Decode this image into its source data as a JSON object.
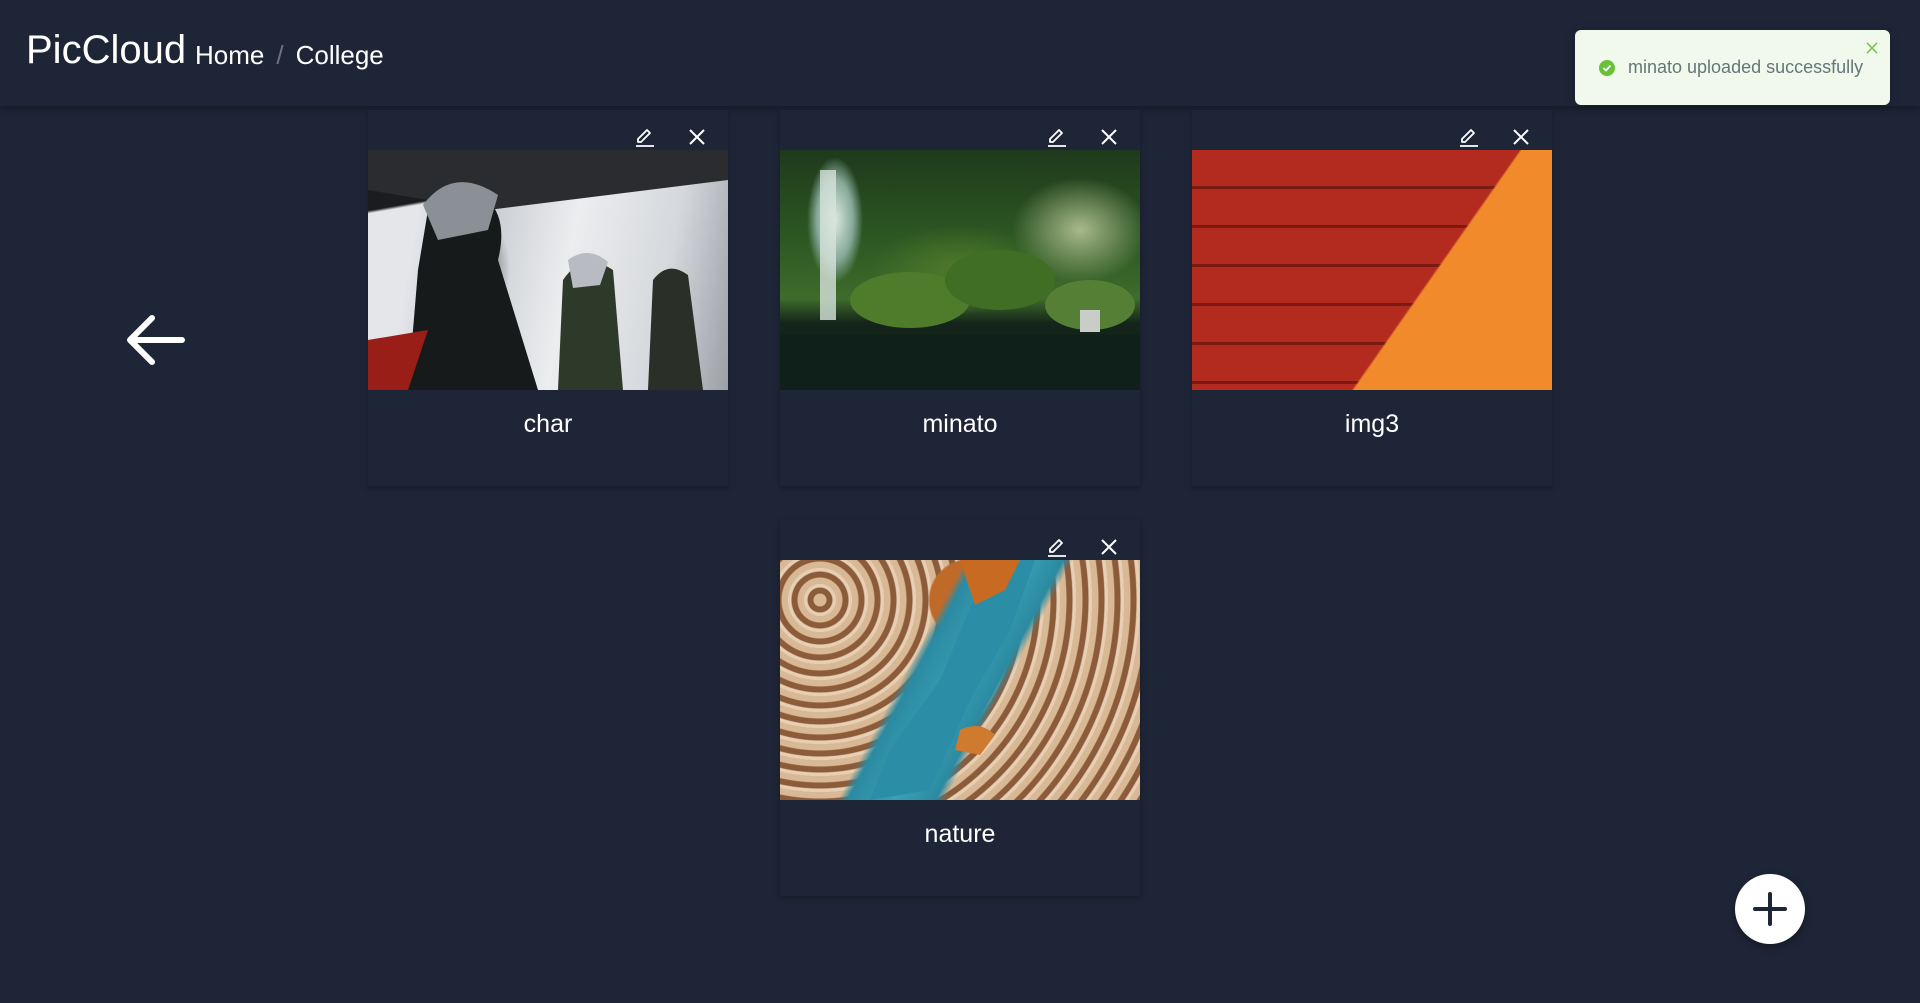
{
  "header": {
    "brand": "PicCloud",
    "breadcrumb": [
      {
        "label": "Home"
      },
      {
        "label": "College"
      }
    ],
    "separator": "/"
  },
  "toast": {
    "message": "minato uploaded successfully",
    "type": "success",
    "color": "#67c23a"
  },
  "navigation": {
    "back_icon": "arrow-left-icon"
  },
  "gallery": {
    "items": [
      {
        "title": "char",
        "image": "anime-characters"
      },
      {
        "title": "minato",
        "image": "japanese-garden-waterfall"
      },
      {
        "title": "img3",
        "image": "red-wall-orange-light"
      },
      {
        "title": "nature",
        "image": "aerial-forest-river"
      }
    ],
    "edit_icon": "pencil-icon",
    "delete_icon": "close-icon"
  },
  "fab": {
    "icon": "plus-icon"
  },
  "colors": {
    "background": "#1e2537",
    "text": "#ffffff",
    "toast_background": "#f0f9eb",
    "success": "#67c23a"
  }
}
